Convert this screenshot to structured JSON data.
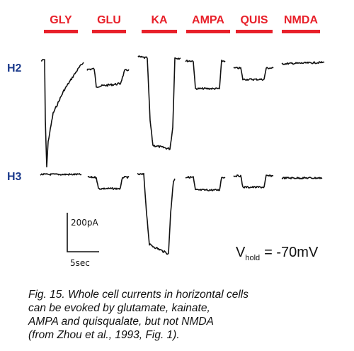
{
  "figure": {
    "agonists": [
      "GLY",
      "GLU",
      "KA",
      "AMPA",
      "QUIS",
      "NMDA"
    ],
    "rows": [
      "H2",
      "H3"
    ],
    "scale_bar": {
      "current": "200pA",
      "time": "5sec"
    },
    "holding": {
      "symbol": "V",
      "subscript": "hold",
      "value": "= -70mV"
    },
    "caption": [
      "Fig. 15. Whole cell currents in horizontal cells",
      "can be evoked by glutamate, kainate,",
      "AMPA and quisqualate, but not NMDA",
      "(from Zhou et al., 1993, Fig. 1)."
    ]
  }
}
